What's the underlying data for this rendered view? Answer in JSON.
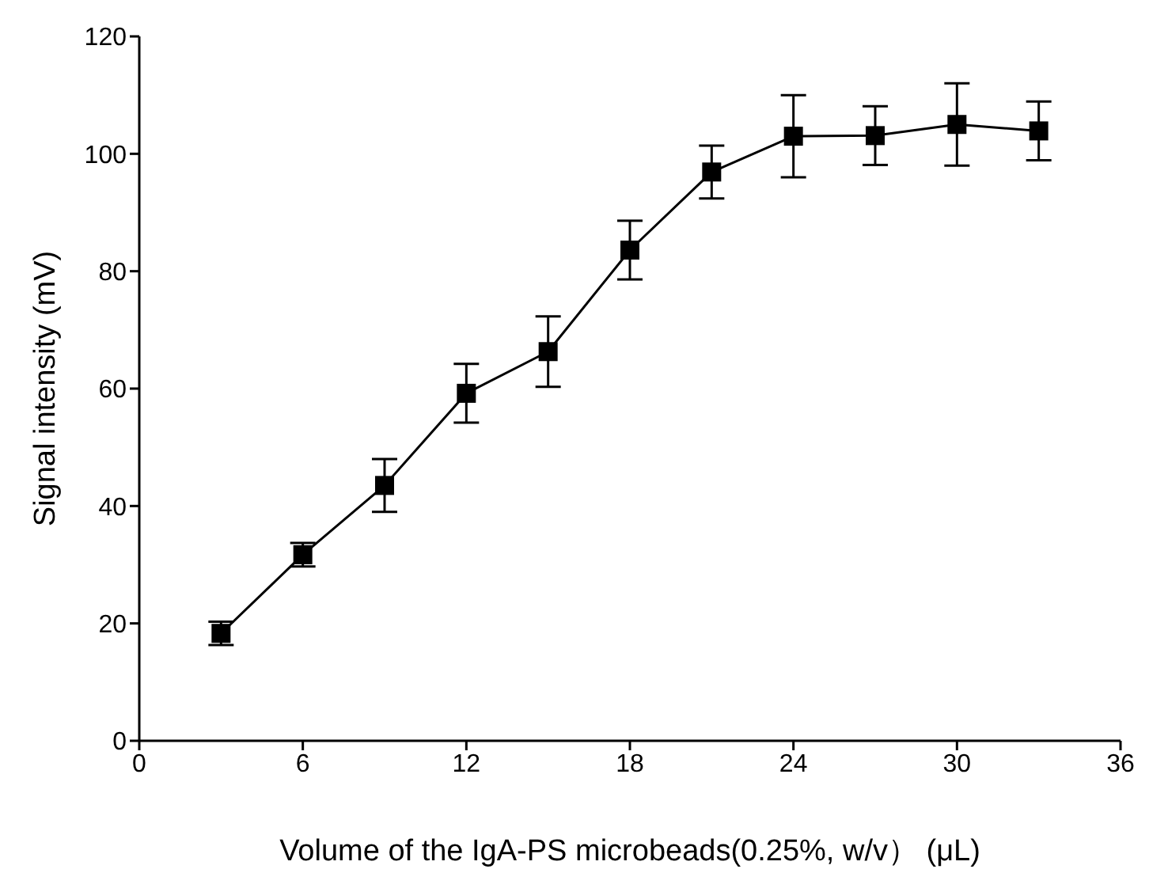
{
  "chart_data": {
    "type": "line",
    "xlabel": "Volume of the IgA-PS microbeads(0.25%, w/v） (μL)",
    "ylabel": "Signal intensity (mV)",
    "x": [
      3,
      6,
      9,
      12,
      15,
      18,
      21,
      24,
      27,
      30,
      33
    ],
    "series": [
      {
        "color": "#000000",
        "values": [
          18.3,
          31.7,
          43.5,
          59.2,
          66.3,
          83.6,
          96.9,
          103,
          103.1,
          105,
          103.9
        ],
        "errors": [
          2,
          2,
          4.5,
          5,
          6,
          5,
          4.5,
          7,
          5,
          7,
          5
        ]
      }
    ],
    "xlim": [
      0,
      36
    ],
    "xticks": [
      0,
      6,
      12,
      18,
      24,
      30,
      36
    ],
    "ylim": [
      0,
      120
    ],
    "yticks": [
      0,
      20,
      40,
      60,
      80,
      100,
      120
    ],
    "grid": false,
    "legend": false,
    "marker": "square",
    "line_style": "solid"
  }
}
